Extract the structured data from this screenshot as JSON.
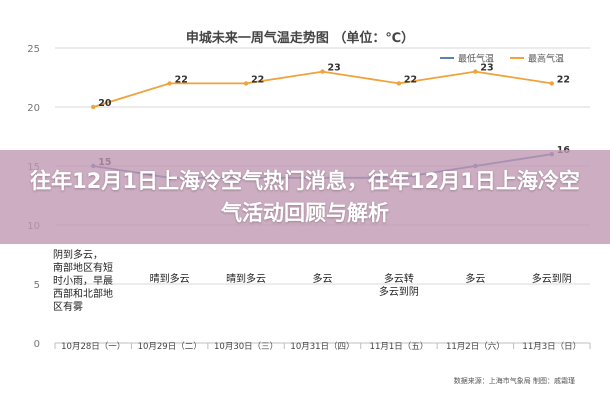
{
  "chart_data": {
    "type": "line",
    "title": "申城未来一周气温走势图  （单位：℃）",
    "ylim": [
      0,
      25
    ],
    "yticks": [
      0,
      5,
      10,
      15,
      20,
      25
    ],
    "grid": true,
    "legend_position": "top-right",
    "categories": [
      "10月28日（一）",
      "10月29日（二）",
      "10月30日（三）",
      "10月31日（四）",
      "11月1日（五）",
      "11月2日（六）",
      "11月3日（日）"
    ],
    "series": [
      {
        "name": "最低气温",
        "color": "#5b7fbf",
        "values": [
          15,
          14,
          14,
          14,
          14,
          15,
          16
        ],
        "labels": [
          "15",
          "",
          "",
          "",
          "",
          "",
          "16"
        ]
      },
      {
        "name": "最高气温",
        "color": "#f0a23c",
        "values": [
          20,
          22,
          22,
          23,
          22,
          23,
          22
        ],
        "labels": [
          "20",
          "22",
          "22",
          "23",
          "22",
          "23",
          "22"
        ]
      }
    ],
    "weather": [
      [
        "阴到多云，",
        "南部地区有短",
        "时小雨，早晨",
        "西部和北部地",
        "区有雾"
      ],
      [
        "晴到多云"
      ],
      [
        "晴到多云"
      ],
      [
        "多云"
      ],
      [
        "多云转",
        "多云到阴"
      ],
      [
        "多云"
      ],
      [
        "多云到阴"
      ]
    ],
    "credit": "数据来源：上海市气象局  制图：戚霜瑾"
  },
  "overlay": {
    "headline": "往年12月1日上海冷空气热门消息，往年12月1日上海冷空气活动回顾与解析"
  }
}
